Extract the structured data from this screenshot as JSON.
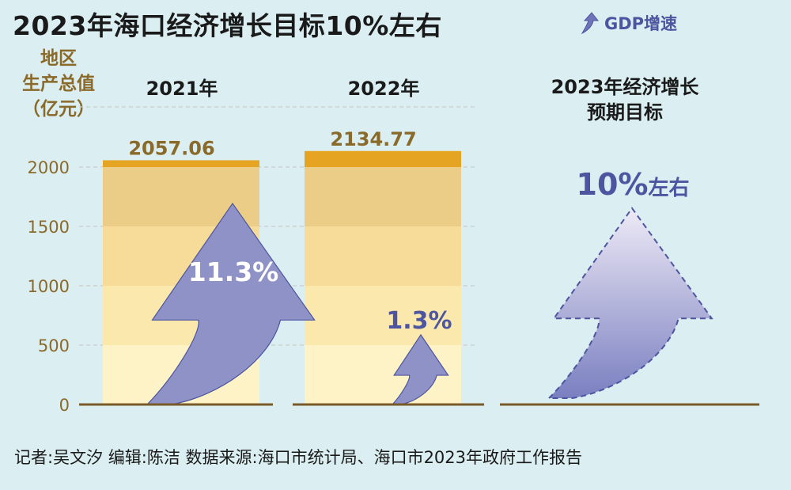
{
  "title": "2023年海口经济增长目标10%左右",
  "legend": {
    "label": "GDP增速",
    "icon": "up-arrow-icon",
    "color": "#4d55a0"
  },
  "y_axis_title": [
    "地区",
    "生产总值",
    "（亿元）"
  ],
  "column_headers": {
    "col1": "2021年",
    "col2": "2022年",
    "col3_line1": "2023年经济增长",
    "col3_line2": "预期目标"
  },
  "footer": "记者:吴文汐  编辑:陈洁   数据来源:海口市统计局、海口市2023年政府工作报告",
  "chart_data": {
    "type": "bar",
    "title": "2023年海口经济增长目标10%左右",
    "ylabel": "地区生产总值（亿元）",
    "ylim": [
      0,
      2000
    ],
    "yticks": [
      0,
      500,
      1000,
      1500,
      2000
    ],
    "categories": [
      "2021年",
      "2022年",
      "2023年经济增长预期目标"
    ],
    "values": [
      2057.06,
      2134.77,
      null
    ],
    "value_labels": [
      "2057.06",
      "2134.77",
      ""
    ],
    "growth_series": {
      "name": "GDP增速",
      "values": [
        11.3,
        1.3,
        10
      ],
      "labels": [
        "11.3%",
        "1.3%",
        "10%"
      ],
      "label_suffix_target": "左右"
    },
    "grid": true,
    "colors": {
      "bar_top": "#e5a523",
      "band_colors": [
        "#fdf3c6",
        "#fbe8ad",
        "#f6dc98",
        "#eccd87"
      ],
      "arrow": "#8f92c7",
      "label_text": "#8a6a2a",
      "growth_text": "#4d55a0"
    }
  }
}
